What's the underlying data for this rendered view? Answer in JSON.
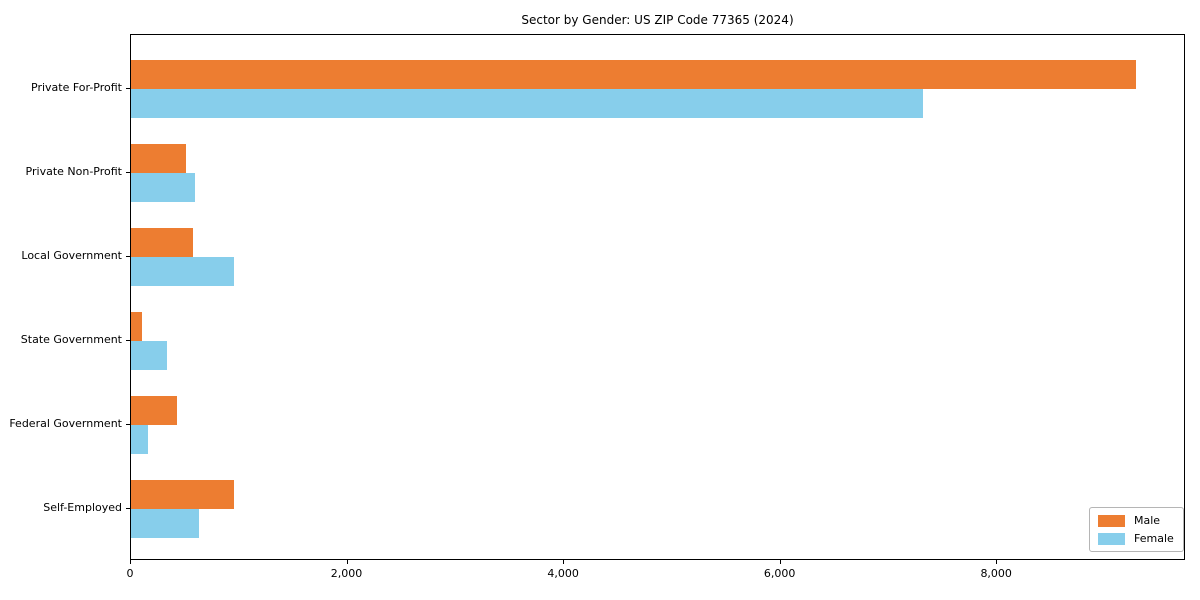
{
  "chart_data": {
    "type": "bar",
    "orientation": "horizontal",
    "title": "Sector by Gender: US ZIP Code 77365 (2024)",
    "categories": [
      "Private For-Profit",
      "Private Non-Profit",
      "Local Government",
      "State Government",
      "Federal Government",
      "Self-Employed"
    ],
    "series": [
      {
        "name": "Male",
        "color": "#ed7d31",
        "values": [
          9280,
          510,
          570,
          100,
          425,
          955
        ]
      },
      {
        "name": "Female",
        "color": "#87ceeb",
        "values": [
          7310,
          590,
          950,
          330,
          160,
          630
        ]
      }
    ],
    "xlabel": "",
    "ylabel": "",
    "xlim": [
      0,
      9744
    ],
    "xticks": [
      0,
      2000,
      4000,
      6000,
      8000
    ],
    "xtick_labels": [
      "0",
      "2,000",
      "4,000",
      "6,000",
      "8,000"
    ],
    "grid": false,
    "legend": {
      "position": "lower right"
    },
    "colors": {
      "axis": "#000000",
      "background": "#ffffff"
    }
  }
}
